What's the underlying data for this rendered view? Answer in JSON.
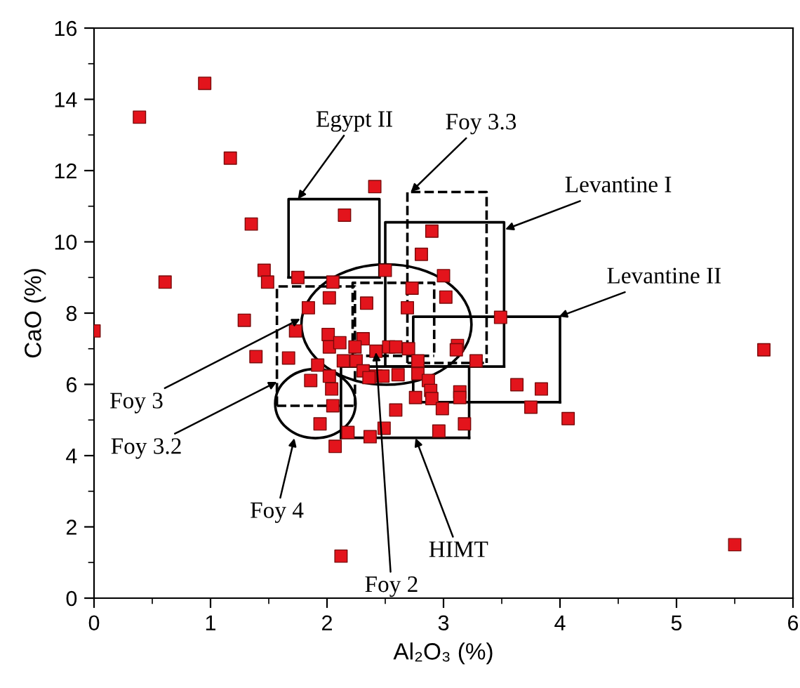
{
  "chart_data": {
    "type": "scatter",
    "xlabel": "Al₂O₃ (%)",
    "ylabel": "CaO (%)",
    "xlim": [
      0,
      6
    ],
    "ylim": [
      0,
      16
    ],
    "xticks": [
      0,
      1,
      2,
      3,
      4,
      5,
      6
    ],
    "yticks": [
      0,
      2,
      4,
      6,
      8,
      10,
      12,
      14,
      16
    ],
    "grid": false,
    "legend": false,
    "marker": "square",
    "series": [
      {
        "color": "#e3141c",
        "x": [
          0,
          0.39,
          0.95,
          1.17,
          1.35,
          1.46,
          1.49,
          0.61,
          1.29,
          1.39,
          1.75,
          2.15,
          2.41,
          2.02,
          2.34,
          1.84,
          2.69,
          2.73,
          2.5,
          2.9,
          2.81,
          3.0,
          3.02,
          2.05,
          1.73,
          2.01,
          2.31,
          1.67,
          2.02,
          2.11,
          2.24,
          2.42,
          2.53,
          2.59,
          2.7,
          3.12,
          3.11,
          3.49,
          3.28,
          1.92,
          2.14,
          2.25,
          2.31,
          2.42,
          2.48,
          2.61,
          2.78,
          2.78,
          2.02,
          2.36,
          2.87,
          1.86,
          2.04,
          2.89,
          2.9,
          3.14,
          3.14,
          2.76,
          3.63,
          3.75,
          2.05,
          2.99,
          2.59,
          3.18,
          1.94,
          2.18,
          2.49,
          2.37,
          2.96,
          2.07,
          3.84,
          4.07,
          5.75,
          5.5,
          2.12
        ],
        "values": [
          7.5,
          13.5,
          14.45,
          12.35,
          10.5,
          9.2,
          8.87,
          8.87,
          7.8,
          6.78,
          9.0,
          10.75,
          11.55,
          8.43,
          8.28,
          8.15,
          8.15,
          8.7,
          9.2,
          10.3,
          9.65,
          9.05,
          8.45,
          8.87,
          7.5,
          7.4,
          7.28,
          6.74,
          7.05,
          7.17,
          7.05,
          6.93,
          7.05,
          7.05,
          7.0,
          7.09,
          6.97,
          7.88,
          6.66,
          6.54,
          6.66,
          6.66,
          6.38,
          6.23,
          6.23,
          6.27,
          6.66,
          6.3,
          6.23,
          6.19,
          6.11,
          6.11,
          5.87,
          5.83,
          5.6,
          5.79,
          5.63,
          5.63,
          5.99,
          5.36,
          5.4,
          5.32,
          5.28,
          4.89,
          4.89,
          4.65,
          4.77,
          4.53,
          4.69,
          4.26,
          5.87,
          5.04,
          6.97,
          1.5,
          1.18
        ]
      },
      {
        "type": "line",
        "color": "#000000",
        "line_style": "solid",
        "marker": "none",
        "x": [
          1.67,
          1.67,
          2.45,
          2.45
        ],
        "values": [
          9.0,
          11.2,
          11.2,
          9.0
        ]
      },
      {
        "type": "line",
        "color": "#000000",
        "line_style": "solid",
        "marker": "none",
        "x": [
          1.67,
          2.45
        ],
        "values": [
          9.0,
          9.0
        ]
      },
      {
        "type": "line",
        "color": "#000000",
        "line_style": "dashed",
        "marker": "none",
        "x": [
          2.69,
          2.69,
          3.37,
          3.37
        ],
        "values": [
          6.6,
          11.4,
          11.4,
          6.6
        ]
      },
      {
        "type": "line",
        "color": "#000000",
        "line_style": "dashed",
        "marker": "none",
        "x": [
          2.69,
          3.37
        ],
        "values": [
          6.6,
          6.6
        ]
      },
      {
        "type": "line",
        "color": "#000000",
        "line_style": "solid",
        "marker": "none",
        "x": [
          2.5,
          2.5,
          3.52,
          3.52
        ],
        "values": [
          6.5,
          10.55,
          10.55,
          6.5
        ]
      },
      {
        "type": "line",
        "color": "#000000",
        "line_style": "solid",
        "marker": "none",
        "x": [
          2.5,
          3.52
        ],
        "values": [
          6.5,
          6.5
        ]
      },
      {
        "type": "line",
        "color": "#000000",
        "line_style": "solid",
        "marker": "none",
        "x": [
          2.74,
          2.74,
          4.0,
          4.0
        ],
        "values": [
          5.5,
          7.9,
          7.9,
          5.5
        ]
      },
      {
        "type": "line",
        "color": "#000000",
        "line_style": "solid",
        "marker": "none",
        "x": [
          2.74,
          4.0
        ],
        "values": [
          5.5,
          5.5
        ]
      },
      {
        "type": "line",
        "color": "#000000",
        "line_style": "solid",
        "marker": "none",
        "x": [
          2.12,
          2.12,
          3.22,
          3.22
        ],
        "values": [
          4.5,
          6.5,
          6.5,
          4.5
        ]
      },
      {
        "type": "line",
        "color": "#000000",
        "line_style": "solid",
        "marker": "none",
        "x": [
          2.12,
          3.22
        ],
        "values": [
          4.5,
          4.5
        ]
      },
      {
        "type": "line",
        "color": "#000000",
        "line_style": "dashed",
        "marker": "none",
        "x": [
          1.57,
          1.57,
          2.24,
          2.24
        ],
        "values": [
          5.4,
          8.75,
          8.75,
          5.4
        ]
      },
      {
        "type": "line",
        "color": "#000000",
        "line_style": "dashed",
        "marker": "none",
        "x": [
          1.57,
          2.24
        ],
        "values": [
          5.4,
          5.4
        ]
      },
      {
        "type": "line",
        "color": "#000000",
        "line_style": "dashed",
        "marker": "none",
        "x": [
          2.22,
          2.22,
          2.92,
          2.92
        ],
        "values": [
          6.8,
          8.85,
          8.85,
          6.8
        ]
      },
      {
        "type": "line",
        "color": "#000000",
        "line_style": "dashed",
        "marker": "none",
        "x": [
          2.22,
          2.92
        ],
        "values": [
          6.8,
          6.8
        ]
      }
    ],
    "annotations": [
      {
        "text": "Egypt II",
        "x": 1.75,
        "y": 11.2
      },
      {
        "text": "Foy 3.3",
        "x": 2.72,
        "y": 11.4
      },
      {
        "text": "Levantine I",
        "x": 3.53,
        "y": 10.35
      },
      {
        "text": "Levantine II",
        "x": 3.99,
        "y": 7.9
      },
      {
        "text": "Foy 3",
        "x": 1.77,
        "y": 7.84
      },
      {
        "text": "Foy 3.2",
        "x": 1.57,
        "y": 6.07
      },
      "Foy 4",
      {
        "text": "Foy 2",
        "x": 2.42,
        "y": 6.9
      },
      {
        "text": "HIMT",
        "x": 2.76,
        "y": 4.49
      }
    ]
  }
}
